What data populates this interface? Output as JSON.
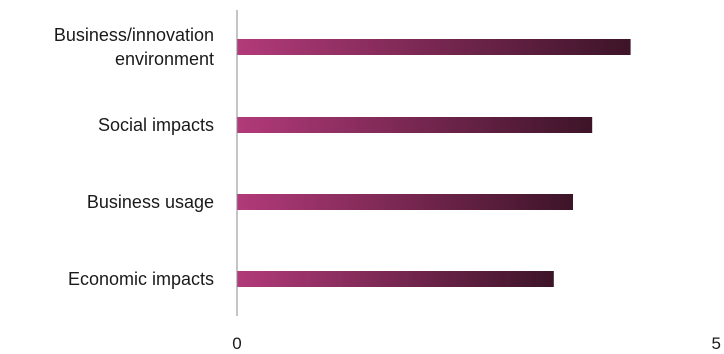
{
  "chart_data": {
    "type": "bar",
    "orientation": "horizontal",
    "categories": [
      [
        "Business/innovation",
        "environment"
      ],
      [
        "Social impacts"
      ],
      [
        "Business usage"
      ],
      [
        "Economic impacts"
      ]
    ],
    "values": [
      4.1,
      3.7,
      3.5,
      3.3
    ],
    "xlim": [
      0,
      5
    ],
    "xticks": [
      "0",
      "5"
    ],
    "grid": false,
    "bar_color_start": "#b23a7a",
    "bar_color_end": "#3d1428",
    "axis_color": "#8a8a8a"
  }
}
